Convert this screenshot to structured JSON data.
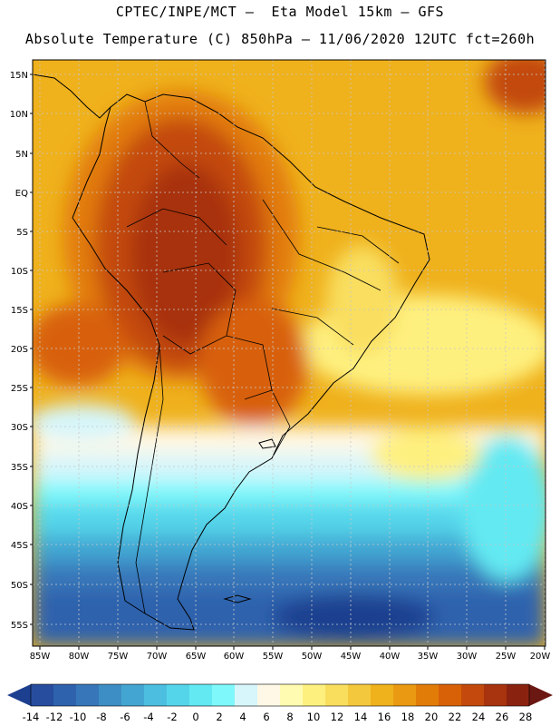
{
  "header": {
    "line1": "CPTEC/INPE/MCT –  Eta Model 15km – GFS",
    "line2": "Absolute Temperature (C) 850hPa – 11/06/2020 12UTC fct=260h"
  },
  "map": {
    "lat_labels": [
      "15N",
      "10N",
      "5N",
      "EQ",
      "5S",
      "10S",
      "15S",
      "20S",
      "25S",
      "30S",
      "35S",
      "40S",
      "45S",
      "50S",
      "55S"
    ],
    "lon_labels": [
      "85W",
      "80W",
      "75W",
      "70W",
      "65W",
      "60W",
      "55W",
      "50W",
      "45W",
      "40W",
      "35W",
      "30W",
      "25W",
      "20W"
    ]
  },
  "colorbar": {
    "labels": [
      "-14",
      "-12",
      "-10",
      "-8",
      "-6",
      "-4",
      "-2",
      "0",
      "2",
      "4",
      "6",
      "8",
      "10",
      "12",
      "14",
      "16",
      "18",
      "20",
      "22",
      "24",
      "26",
      "28"
    ],
    "colors": [
      "#1c3f8f",
      "#264d9e",
      "#2f62ad",
      "#3777b9",
      "#3c8ec4",
      "#43a6d2",
      "#4cbedf",
      "#55d5ea",
      "#63e9f2",
      "#7ff8fb",
      "#d6f6fb",
      "#fff8e6",
      "#fffbb0",
      "#fef07f",
      "#f9de5e",
      "#f4c83d",
      "#efb11c",
      "#ea9a12",
      "#e27c08",
      "#d86108",
      "#c34a0c",
      "#a8330f",
      "#8a2210",
      "#6b1712"
    ]
  }
}
